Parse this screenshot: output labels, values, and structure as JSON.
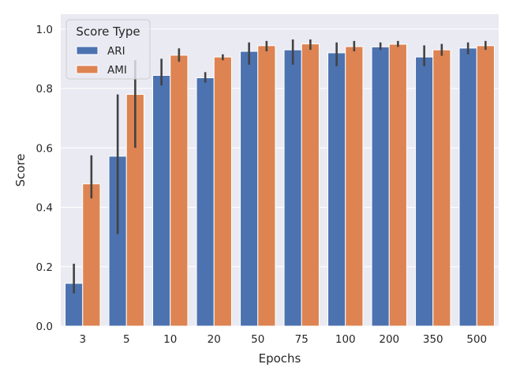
{
  "chart_data": {
    "type": "bar",
    "xlabel": "Epochs",
    "ylabel": "Score",
    "categories": [
      "3",
      "5",
      "10",
      "20",
      "50",
      "75",
      "100",
      "200",
      "350",
      "500"
    ],
    "ylim": [
      0,
      1.05
    ],
    "yticks": [
      "0.0",
      "0.2",
      "0.4",
      "0.6",
      "0.8",
      "1.0"
    ],
    "grid": true,
    "legend": {
      "title": "Score Type",
      "position": "top-left"
    },
    "series": [
      {
        "name": "ARI",
        "color": "#4c72b0",
        "values": [
          0.144,
          0.572,
          0.844,
          0.836,
          0.925,
          0.93,
          0.92,
          0.94,
          0.906,
          0.936
        ],
        "error_low": [
          0.11,
          0.31,
          0.81,
          0.82,
          0.88,
          0.88,
          0.875,
          0.93,
          0.875,
          0.915
        ],
        "error_high": [
          0.21,
          0.78,
          0.9,
          0.855,
          0.955,
          0.965,
          0.955,
          0.955,
          0.945,
          0.955
        ]
      },
      {
        "name": "AMI",
        "color": "#dd8452",
        "values": [
          0.479,
          0.78,
          0.912,
          0.906,
          0.944,
          0.95,
          0.941,
          0.949,
          0.93,
          0.944
        ],
        "error_low": [
          0.43,
          0.6,
          0.89,
          0.895,
          0.925,
          0.93,
          0.925,
          0.94,
          0.91,
          0.93
        ],
        "error_high": [
          0.575,
          0.895,
          0.935,
          0.915,
          0.96,
          0.965,
          0.96,
          0.96,
          0.95,
          0.96
        ]
      }
    ]
  }
}
